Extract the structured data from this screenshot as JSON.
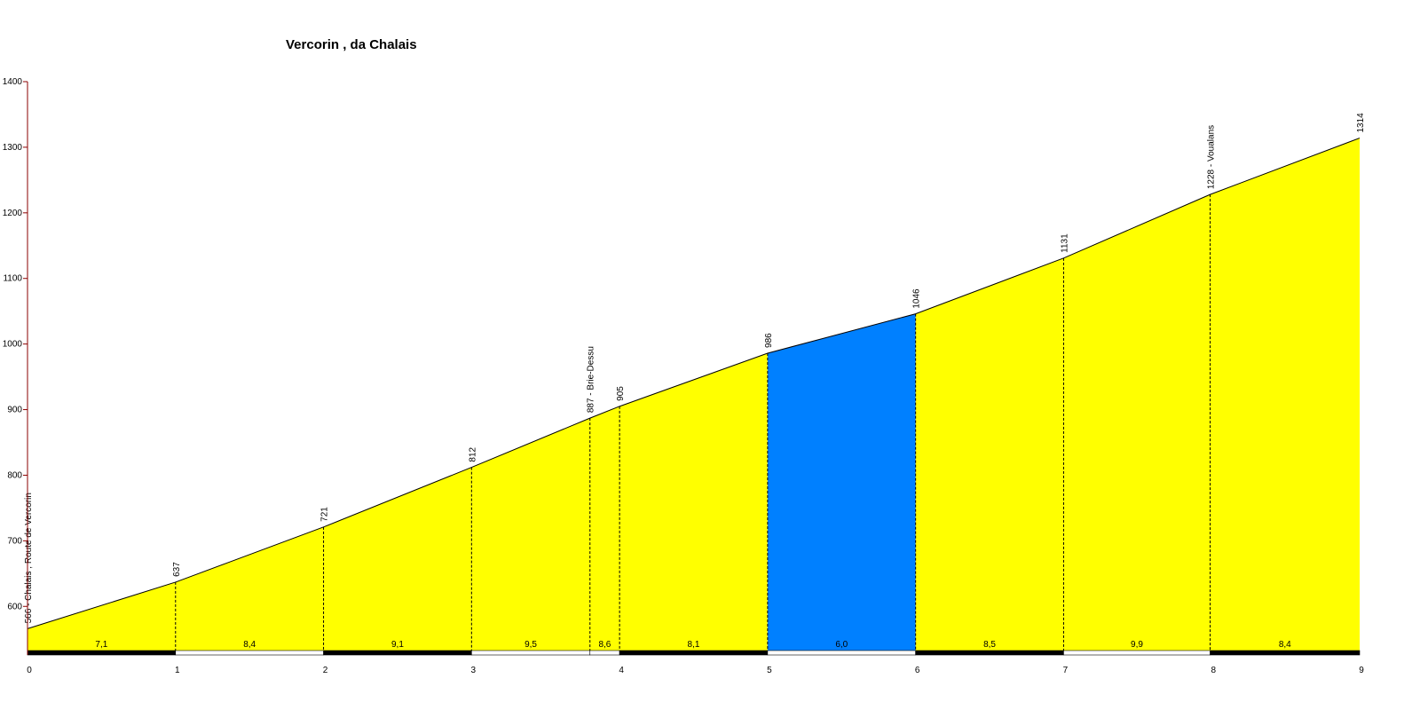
{
  "chart_data": {
    "type": "area",
    "title": "Vercorin , da Chalais",
    "xlabel": "",
    "ylabel": "",
    "xlim": [
      0,
      9
    ],
    "ylim": [
      530,
      1400
    ],
    "x_ticks": [
      "0",
      "1",
      "2",
      "3",
      "4",
      "5",
      "6",
      "7",
      "8",
      "9"
    ],
    "y_ticks": [
      "600",
      "700",
      "800",
      "900",
      "1000",
      "1100",
      "1200",
      "1300",
      "1400"
    ],
    "colors": {
      "fill": "#ffff00",
      "highlight": "#0080ff",
      "outline": "#000000"
    },
    "profile": [
      {
        "x": 0,
        "y": 566,
        "label": "566 - Chalais , Route de Vercorin"
      },
      {
        "x": 1,
        "y": 637,
        "label": "637"
      },
      {
        "x": 2,
        "y": 721,
        "label": "721"
      },
      {
        "x": 3,
        "y": 812,
        "label": "812"
      },
      {
        "x": 3.8,
        "y": 887,
        "label": "887 - Brie-Dessu"
      },
      {
        "x": 4,
        "y": 905,
        "label": "905"
      },
      {
        "x": 5,
        "y": 986,
        "label": "986"
      },
      {
        "x": 6,
        "y": 1046,
        "label": "1046"
      },
      {
        "x": 7,
        "y": 1131,
        "label": "1131"
      },
      {
        "x": 7.99,
        "y": 1228,
        "label": "1228 - Voualans"
      },
      {
        "x": 9,
        "y": 1314,
        "label": "1314"
      }
    ],
    "segments": [
      {
        "from": 0,
        "to": 1,
        "gradient": "7,1",
        "bar": "black",
        "color": "yellow"
      },
      {
        "from": 1,
        "to": 2,
        "gradient": "8,4",
        "bar": "white",
        "color": "yellow"
      },
      {
        "from": 2,
        "to": 3,
        "gradient": "9,1",
        "bar": "black",
        "color": "yellow"
      },
      {
        "from": 3,
        "to": 3.8,
        "gradient": "9,5",
        "bar": "white",
        "color": "yellow"
      },
      {
        "from": 3.8,
        "to": 4,
        "gradient": "8,6",
        "bar": "white",
        "color": "yellow"
      },
      {
        "from": 4,
        "to": 5,
        "gradient": "8,1",
        "bar": "black",
        "color": "yellow"
      },
      {
        "from": 5,
        "to": 6,
        "gradient": "6,0",
        "bar": "white",
        "color": "blue"
      },
      {
        "from": 6,
        "to": 7,
        "gradient": "8,5",
        "bar": "black",
        "color": "yellow"
      },
      {
        "from": 7,
        "to": 7.99,
        "gradient": "9,9",
        "bar": "white",
        "color": "yellow"
      },
      {
        "from": 7.99,
        "to": 9,
        "gradient": "8,4",
        "bar": "black",
        "color": "yellow"
      }
    ]
  }
}
